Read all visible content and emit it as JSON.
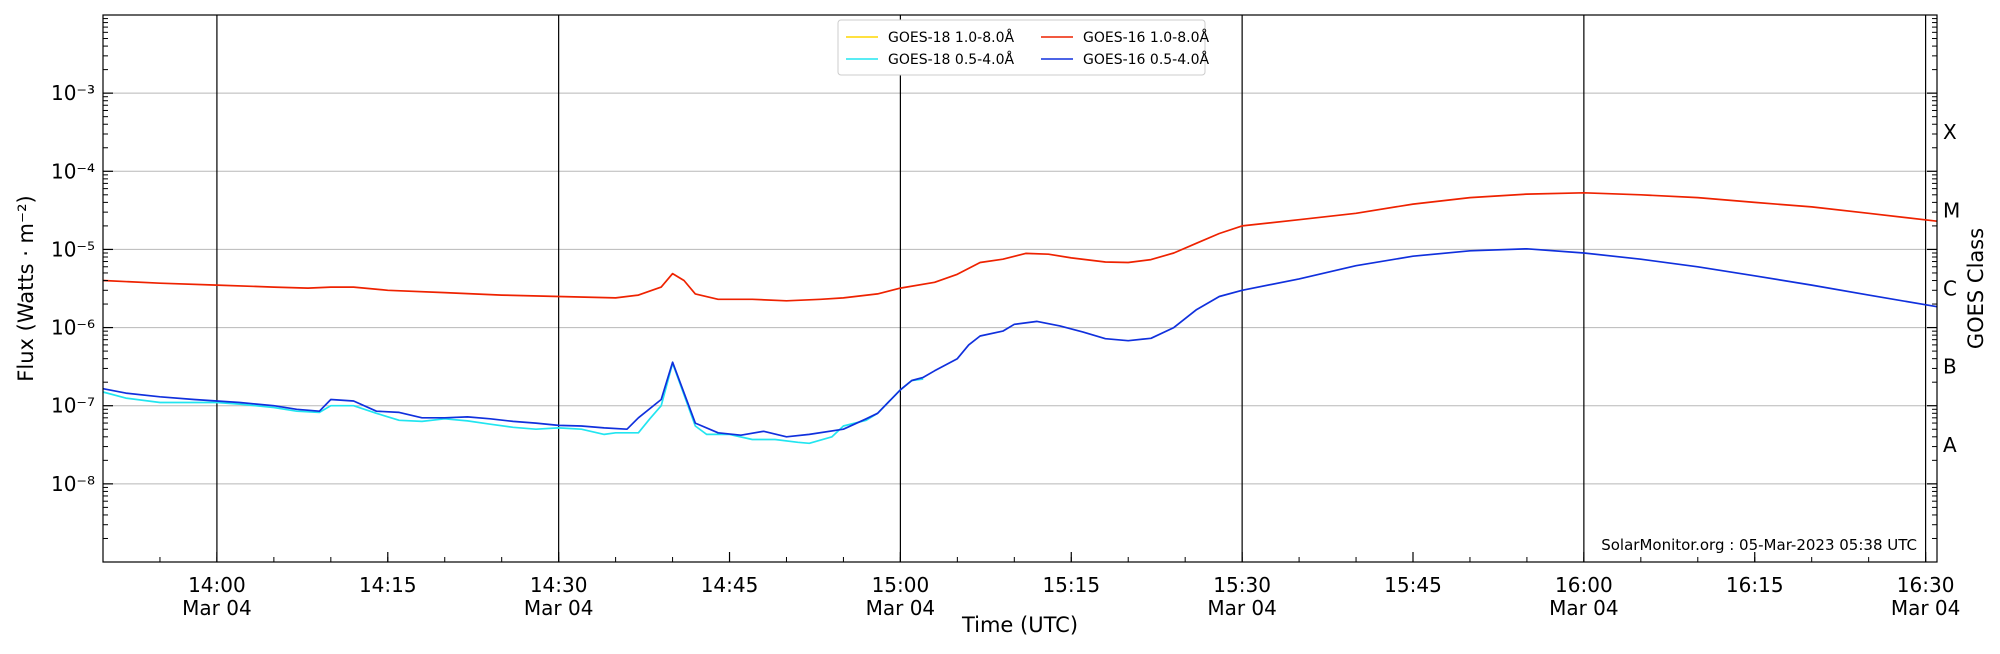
{
  "chart_data": {
    "type": "line",
    "xlabel": "Time (UTC)",
    "ylabel": "Flux (Watts · m⁻²)",
    "y2label": "GOES Class",
    "y_scale": "log",
    "xlim": [
      "2023-03-04T13:50",
      "2023-03-04T16:31"
    ],
    "ylim": [
      1e-09,
      0.01
    ],
    "grid": {
      "horizontal": true,
      "vertical": "major-ticks-only"
    },
    "legend_position": "top-center",
    "credit": "SolarMonitor.org : 05-Mar-2023 05:38 UTC",
    "x_ticks": [
      {
        "t": "2023-03-04T14:00",
        "time": "14:00",
        "date": "Mar 04",
        "vline": true
      },
      {
        "t": "2023-03-04T14:15",
        "time": "14:15",
        "date": "",
        "vline": false
      },
      {
        "t": "2023-03-04T14:30",
        "time": "14:30",
        "date": "Mar 04",
        "vline": true
      },
      {
        "t": "2023-03-04T14:45",
        "time": "14:45",
        "date": "",
        "vline": false
      },
      {
        "t": "2023-03-04T15:00",
        "time": "15:00",
        "date": "Mar 04",
        "vline": true
      },
      {
        "t": "2023-03-04T15:15",
        "time": "15:15",
        "date": "",
        "vline": false
      },
      {
        "t": "2023-03-04T15:30",
        "time": "15:30",
        "date": "Mar 04",
        "vline": true
      },
      {
        "t": "2023-03-04T15:45",
        "time": "15:45",
        "date": "",
        "vline": false
      },
      {
        "t": "2023-03-04T16:00",
        "time": "16:00",
        "date": "Mar 04",
        "vline": true
      },
      {
        "t": "2023-03-04T16:15",
        "time": "16:15",
        "date": "",
        "vline": false
      },
      {
        "t": "2023-03-04T16:30",
        "time": "16:30",
        "date": "Mar 04",
        "vline": true
      }
    ],
    "y_ticks": [
      {
        "value": 1e-08,
        "label": "10⁻⁸"
      },
      {
        "value": 1e-07,
        "label": "10⁻⁷"
      },
      {
        "value": 1e-06,
        "label": "10⁻⁶"
      },
      {
        "value": 1e-05,
        "label": "10⁻⁵"
      },
      {
        "value": 0.0001,
        "label": "10⁻⁴"
      },
      {
        "value": 0.001,
        "label": "10⁻³"
      }
    ],
    "goes_classes": [
      {
        "label": "A",
        "value": 3.16e-08
      },
      {
        "label": "B",
        "value": 3.16e-07
      },
      {
        "label": "C",
        "value": 3.16e-06
      },
      {
        "label": "M",
        "value": 3.16e-05
      },
      {
        "label": "X",
        "value": 0.000316
      }
    ],
    "series": [
      {
        "name": "GOES-18 1.0-8.0Å",
        "color": "#ffd700",
        "points": []
      },
      {
        "name": "GOES-18 0.5-4.0Å",
        "color": "#22e5f0",
        "points": [
          [
            "2023-03-04T13:50",
            1.5e-07
          ],
          [
            "2023-03-04T13:52",
            1.25e-07
          ],
          [
            "2023-03-04T13:55",
            1.1e-07
          ],
          [
            "2023-03-04T13:58",
            1.1e-07
          ],
          [
            "2023-03-04T14:00",
            1.1e-07
          ],
          [
            "2023-03-04T14:02",
            1.05e-07
          ],
          [
            "2023-03-04T14:05",
            9.5e-08
          ],
          [
            "2023-03-04T14:07",
            8.5e-08
          ],
          [
            "2023-03-04T14:09",
            8.2e-08
          ],
          [
            "2023-03-04T14:10",
            1e-07
          ],
          [
            "2023-03-04T14:12",
            1e-07
          ],
          [
            "2023-03-04T14:14",
            8e-08
          ],
          [
            "2023-03-04T14:16",
            6.5e-08
          ],
          [
            "2023-03-04T14:18",
            6.3e-08
          ],
          [
            "2023-03-04T14:20",
            6.8e-08
          ],
          [
            "2023-03-04T14:22",
            6.4e-08
          ],
          [
            "2023-03-04T14:24",
            5.8e-08
          ],
          [
            "2023-03-04T14:26",
            5.3e-08
          ],
          [
            "2023-03-04T14:28",
            5e-08
          ],
          [
            "2023-03-04T14:30",
            5.2e-08
          ],
          [
            "2023-03-04T14:32",
            5e-08
          ],
          [
            "2023-03-04T14:34",
            4.3e-08
          ],
          [
            "2023-03-04T14:35",
            4.5e-08
          ],
          [
            "2023-03-04T14:37",
            4.5e-08
          ],
          [
            "2023-03-04T14:38",
            6.8e-08
          ],
          [
            "2023-03-04T14:39",
            1e-07
          ],
          [
            "2023-03-04T14:40",
            3.5e-07
          ],
          [
            "2023-03-04T14:42",
            5.5e-08
          ],
          [
            "2023-03-04T14:43",
            4.3e-08
          ],
          [
            "2023-03-04T14:45",
            4.3e-08
          ],
          [
            "2023-03-04T14:47",
            3.7e-08
          ],
          [
            "2023-03-04T14:49",
            3.7e-08
          ],
          [
            "2023-03-04T14:51",
            3.4e-08
          ],
          [
            "2023-03-04T14:52",
            3.3e-08
          ],
          [
            "2023-03-04T14:54",
            4e-08
          ],
          [
            "2023-03-04T14:55",
            5.5e-08
          ],
          [
            "2023-03-04T14:57",
            6.5e-08
          ],
          [
            "2023-03-04T14:58",
            8e-08
          ],
          [
            "2023-03-04T15:00",
            1.6e-07
          ],
          [
            "2023-03-04T15:01",
            2.1e-07
          ],
          [
            "2023-03-04T15:02",
            2.2e-07
          ]
        ]
      },
      {
        "name": "GOES-16 1.0-8.0Å",
        "color": "#ee2200",
        "points": [
          [
            "2023-03-04T13:50",
            4e-06
          ],
          [
            "2023-03-04T13:55",
            3.7e-06
          ],
          [
            "2023-03-04T14:00",
            3.5e-06
          ],
          [
            "2023-03-04T14:05",
            3.3e-06
          ],
          [
            "2023-03-04T14:08",
            3.2e-06
          ],
          [
            "2023-03-04T14:10",
            3.3e-06
          ],
          [
            "2023-03-04T14:12",
            3.3e-06
          ],
          [
            "2023-03-04T14:15",
            3e-06
          ],
          [
            "2023-03-04T14:20",
            2.8e-06
          ],
          [
            "2023-03-04T14:25",
            2.6e-06
          ],
          [
            "2023-03-04T14:30",
            2.5e-06
          ],
          [
            "2023-03-04T14:35",
            2.4e-06
          ],
          [
            "2023-03-04T14:37",
            2.6e-06
          ],
          [
            "2023-03-04T14:39",
            3.3e-06
          ],
          [
            "2023-03-04T14:40",
            4.9e-06
          ],
          [
            "2023-03-04T14:41",
            4e-06
          ],
          [
            "2023-03-04T14:42",
            2.7e-06
          ],
          [
            "2023-03-04T14:44",
            2.3e-06
          ],
          [
            "2023-03-04T14:47",
            2.3e-06
          ],
          [
            "2023-03-04T14:50",
            2.2e-06
          ],
          [
            "2023-03-04T14:53",
            2.3e-06
          ],
          [
            "2023-03-04T14:55",
            2.4e-06
          ],
          [
            "2023-03-04T14:58",
            2.7e-06
          ],
          [
            "2023-03-04T15:00",
            3.2e-06
          ],
          [
            "2023-03-04T15:03",
            3.8e-06
          ],
          [
            "2023-03-04T15:05",
            4.8e-06
          ],
          [
            "2023-03-04T15:07",
            6.8e-06
          ],
          [
            "2023-03-04T15:09",
            7.5e-06
          ],
          [
            "2023-03-04T15:11",
            8.9e-06
          ],
          [
            "2023-03-04T15:13",
            8.7e-06
          ],
          [
            "2023-03-04T15:15",
            7.8e-06
          ],
          [
            "2023-03-04T15:18",
            6.9e-06
          ],
          [
            "2023-03-04T15:20",
            6.8e-06
          ],
          [
            "2023-03-04T15:22",
            7.4e-06
          ],
          [
            "2023-03-04T15:24",
            9e-06
          ],
          [
            "2023-03-04T15:26",
            1.2e-05
          ],
          [
            "2023-03-04T15:28",
            1.6e-05
          ],
          [
            "2023-03-04T15:30",
            2e-05
          ],
          [
            "2023-03-04T15:35",
            2.4e-05
          ],
          [
            "2023-03-04T15:40",
            2.9e-05
          ],
          [
            "2023-03-04T15:45",
            3.8e-05
          ],
          [
            "2023-03-04T15:50",
            4.6e-05
          ],
          [
            "2023-03-04T15:55",
            5.1e-05
          ],
          [
            "2023-03-04T16:00",
            5.3e-05
          ],
          [
            "2023-03-04T16:05",
            5e-05
          ],
          [
            "2023-03-04T16:10",
            4.6e-05
          ],
          [
            "2023-03-04T16:15",
            4e-05
          ],
          [
            "2023-03-04T16:20",
            3.5e-05
          ],
          [
            "2023-03-04T16:25",
            2.9e-05
          ],
          [
            "2023-03-04T16:31",
            2.3e-05
          ]
        ]
      },
      {
        "name": "GOES-16 0.5-4.0Å",
        "color": "#1030dd",
        "points": [
          [
            "2023-03-04T13:50",
            1.65e-07
          ],
          [
            "2023-03-04T13:52",
            1.45e-07
          ],
          [
            "2023-03-04T13:55",
            1.3e-07
          ],
          [
            "2023-03-04T13:58",
            1.2e-07
          ],
          [
            "2023-03-04T14:00",
            1.15e-07
          ],
          [
            "2023-03-04T14:02",
            1.1e-07
          ],
          [
            "2023-03-04T14:05",
            1e-07
          ],
          [
            "2023-03-04T14:07",
            9e-08
          ],
          [
            "2023-03-04T14:09",
            8.5e-08
          ],
          [
            "2023-03-04T14:10",
            1.2e-07
          ],
          [
            "2023-03-04T14:12",
            1.15e-07
          ],
          [
            "2023-03-04T14:14",
            8.5e-08
          ],
          [
            "2023-03-04T14:16",
            8.2e-08
          ],
          [
            "2023-03-04T14:18",
            7e-08
          ],
          [
            "2023-03-04T14:20",
            7e-08
          ],
          [
            "2023-03-04T14:22",
            7.2e-08
          ],
          [
            "2023-03-04T14:24",
            6.8e-08
          ],
          [
            "2023-03-04T14:26",
            6.3e-08
          ],
          [
            "2023-03-04T14:28",
            6e-08
          ],
          [
            "2023-03-04T14:30",
            5.6e-08
          ],
          [
            "2023-03-04T14:32",
            5.5e-08
          ],
          [
            "2023-03-04T14:34",
            5.2e-08
          ],
          [
            "2023-03-04T14:36",
            5e-08
          ],
          [
            "2023-03-04T14:37",
            7e-08
          ],
          [
            "2023-03-04T14:39",
            1.2e-07
          ],
          [
            "2023-03-04T14:40",
            3.6e-07
          ],
          [
            "2023-03-04T14:42",
            6e-08
          ],
          [
            "2023-03-04T14:44",
            4.5e-08
          ],
          [
            "2023-03-04T14:46",
            4.2e-08
          ],
          [
            "2023-03-04T14:48",
            4.7e-08
          ],
          [
            "2023-03-04T14:50",
            4e-08
          ],
          [
            "2023-03-04T14:52",
            4.3e-08
          ],
          [
            "2023-03-04T14:55",
            5e-08
          ],
          [
            "2023-03-04T14:57",
            6.8e-08
          ],
          [
            "2023-03-04T14:58",
            8e-08
          ],
          [
            "2023-03-04T15:00",
            1.6e-07
          ],
          [
            "2023-03-04T15:01",
            2.1e-07
          ],
          [
            "2023-03-04T15:02",
            2.3e-07
          ],
          [
            "2023-03-04T15:03",
            2.8e-07
          ],
          [
            "2023-03-04T15:05",
            4e-07
          ],
          [
            "2023-03-04T15:06",
            6e-07
          ],
          [
            "2023-03-04T15:07",
            7.8e-07
          ],
          [
            "2023-03-04T15:09",
            9e-07
          ],
          [
            "2023-03-04T15:10",
            1.1e-06
          ],
          [
            "2023-03-04T15:12",
            1.2e-06
          ],
          [
            "2023-03-04T15:14",
            1.05e-06
          ],
          [
            "2023-03-04T15:16",
            8.8e-07
          ],
          [
            "2023-03-04T15:18",
            7.2e-07
          ],
          [
            "2023-03-04T15:20",
            6.8e-07
          ],
          [
            "2023-03-04T15:22",
            7.3e-07
          ],
          [
            "2023-03-04T15:24",
            1e-06
          ],
          [
            "2023-03-04T15:26",
            1.7e-06
          ],
          [
            "2023-03-04T15:28",
            2.5e-06
          ],
          [
            "2023-03-04T15:30",
            3e-06
          ],
          [
            "2023-03-04T15:35",
            4.2e-06
          ],
          [
            "2023-03-04T15:40",
            6.2e-06
          ],
          [
            "2023-03-04T15:45",
            8.2e-06
          ],
          [
            "2023-03-04T15:50",
            9.6e-06
          ],
          [
            "2023-03-04T15:55",
            1.02e-05
          ],
          [
            "2023-03-04T16:00",
            9e-06
          ],
          [
            "2023-03-04T16:05",
            7.5e-06
          ],
          [
            "2023-03-04T16:10",
            6e-06
          ],
          [
            "2023-03-04T16:15",
            4.6e-06
          ],
          [
            "2023-03-04T16:20",
            3.5e-06
          ],
          [
            "2023-03-04T16:25",
            2.6e-06
          ],
          [
            "2023-03-04T16:31",
            1.85e-06
          ]
        ]
      }
    ]
  }
}
